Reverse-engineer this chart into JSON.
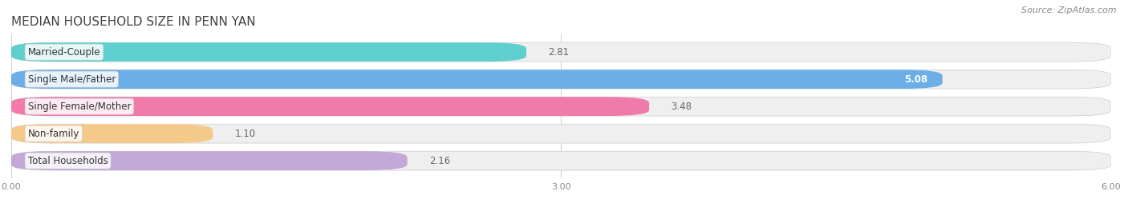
{
  "title": "MEDIAN HOUSEHOLD SIZE IN PENN YAN",
  "source": "Source: ZipAtlas.com",
  "categories": [
    "Married-Couple",
    "Single Male/Father",
    "Single Female/Mother",
    "Non-family",
    "Total Households"
  ],
  "values": [
    2.81,
    5.08,
    3.48,
    1.1,
    2.16
  ],
  "bar_colors": [
    "#5ecece",
    "#6baee8",
    "#f07aaa",
    "#f5c98a",
    "#c3a8d8"
  ],
  "bar_bg_colors": [
    "#efefef",
    "#efefef",
    "#efefef",
    "#efefef",
    "#efefef"
  ],
  "xlim": [
    0,
    6.0
  ],
  "xticks": [
    0.0,
    3.0,
    6.0
  ],
  "xtick_labels": [
    "0.00",
    "3.00",
    "6.00"
  ],
  "title_fontsize": 11,
  "label_fontsize": 8.5,
  "value_fontsize": 8.5,
  "source_fontsize": 8,
  "background_color": "#ffffff",
  "plot_bg_color": "#ffffff",
  "bar_height": 0.7,
  "bar_spacing": 1.0
}
